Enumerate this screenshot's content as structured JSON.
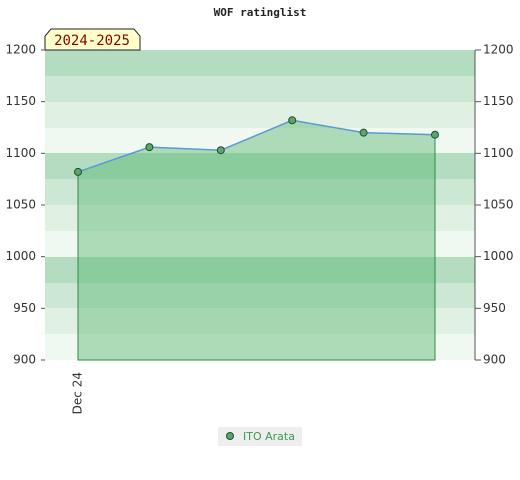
{
  "chart_data": {
    "type": "line",
    "title": "WOF ratinglist",
    "annotation": "2024-2025",
    "categories": [
      "Dec 24",
      null,
      null,
      null,
      null,
      null
    ],
    "series": [
      {
        "name": "ITO Arata",
        "color": "#5b9bd5",
        "marker_color": "#5ca56e",
        "fill_color": "#5cb870",
        "values": [
          1082,
          1106,
          1103,
          1132,
          1120,
          1118
        ]
      }
    ],
    "ylim": [
      900,
      1200
    ],
    "yticks": [
      900,
      950,
      1000,
      1050,
      1100,
      1150,
      1200
    ],
    "y2lim": [
      900,
      1200
    ],
    "y2ticks": [
      900,
      950,
      1000,
      1050,
      1100,
      1150,
      1200
    ]
  }
}
